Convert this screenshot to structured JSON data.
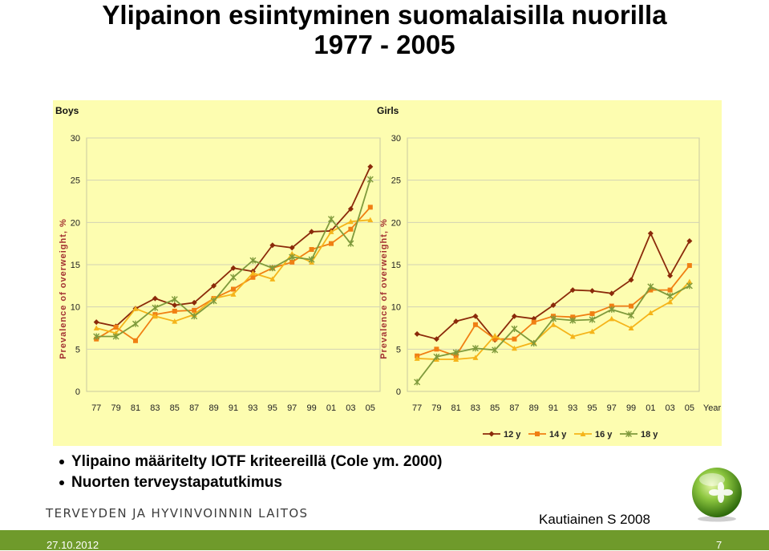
{
  "slide": {
    "title_line1": "Ylipainon esiintyminen suomalaisilla nuorilla",
    "title_line2": "1977 - 2005",
    "bullets": [
      "Ylipaino määritelty IOTF kriteereillä (Cole ym. 2000)",
      "Nuorten terveystapatutkimus"
    ],
    "organization": "TERVEYDEN JA HYVINVOINNIN LAITOS",
    "credit": "Kautiainen S 2008",
    "date": "27.10.2012",
    "page_number": "7"
  },
  "colors": {
    "panel_bg": "#fdfdb0",
    "footer": "#6f9a2b",
    "12y": "#8b2a0a",
    "14y": "#f07f13",
    "16y": "#f5b41a",
    "18y": "#7f9a3c"
  },
  "chart_data": [
    {
      "type": "line",
      "title": "Boys",
      "ylabel": "Prevalence of overweight, %",
      "xlabel": "",
      "ylim": [
        0,
        30
      ],
      "yticks": [
        "0",
        "5",
        "10",
        "15",
        "20",
        "25",
        "30"
      ],
      "categories": [
        "77",
        "79",
        "81",
        "83",
        "85",
        "87",
        "89",
        "91",
        "93",
        "95",
        "97",
        "99",
        "01",
        "03",
        "05"
      ],
      "series": [
        {
          "name": "12 y",
          "values": [
            8.2,
            7.7,
            9.8,
            11.0,
            10.2,
            10.5,
            12.5,
            14.6,
            14.2,
            17.3,
            17.0,
            18.9,
            19.0,
            21.6,
            26.6
          ]
        },
        {
          "name": "14 y",
          "values": [
            6.2,
            7.6,
            6.0,
            9.1,
            9.5,
            9.6,
            11.0,
            12.1,
            13.5,
            14.6,
            15.3,
            16.8,
            17.5,
            19.2,
            21.8
          ]
        },
        {
          "name": "16 y",
          "values": [
            7.5,
            6.9,
            9.8,
            8.9,
            8.3,
            9.1,
            11.0,
            11.5,
            14.0,
            13.3,
            16.3,
            15.3,
            18.9,
            20.1,
            20.3
          ]
        },
        {
          "name": "18 y",
          "values": [
            6.5,
            6.5,
            8.0,
            9.9,
            10.9,
            8.9,
            10.7,
            13.5,
            15.5,
            14.6,
            15.9,
            15.6,
            20.4,
            17.5,
            25.1
          ]
        }
      ]
    },
    {
      "type": "line",
      "title": "Girls",
      "ylabel": "Prevalence of overweight, %",
      "xlabel": "Year",
      "ylim": [
        0,
        30
      ],
      "yticks": [
        "0",
        "5",
        "10",
        "15",
        "20",
        "25",
        "30"
      ],
      "categories": [
        "77",
        "79",
        "81",
        "83",
        "85",
        "87",
        "89",
        "91",
        "93",
        "95",
        "97",
        "99",
        "01",
        "03",
        "05"
      ],
      "legend": "bottom",
      "series": [
        {
          "name": "12 y",
          "values": [
            6.8,
            6.2,
            8.3,
            8.9,
            6.1,
            8.9,
            8.6,
            10.2,
            12.0,
            11.9,
            11.6,
            13.2,
            18.7,
            13.7,
            17.8
          ]
        },
        {
          "name": "14 y",
          "values": [
            4.2,
            5.0,
            4.2,
            7.9,
            6.2,
            6.2,
            8.2,
            8.9,
            8.8,
            9.2,
            10.1,
            10.1,
            12.0,
            12.0,
            14.9
          ]
        },
        {
          "name": "16 y",
          "values": [
            3.9,
            3.8,
            3.8,
            4.0,
            6.6,
            5.1,
            5.8,
            7.9,
            6.5,
            7.1,
            8.6,
            7.5,
            9.3,
            10.6,
            13.0
          ]
        },
        {
          "name": "18 y",
          "values": [
            1.1,
            4.1,
            4.6,
            5.1,
            4.9,
            7.4,
            5.7,
            8.6,
            8.4,
            8.5,
            9.7,
            9.0,
            12.4,
            11.3,
            12.5
          ]
        }
      ]
    }
  ]
}
